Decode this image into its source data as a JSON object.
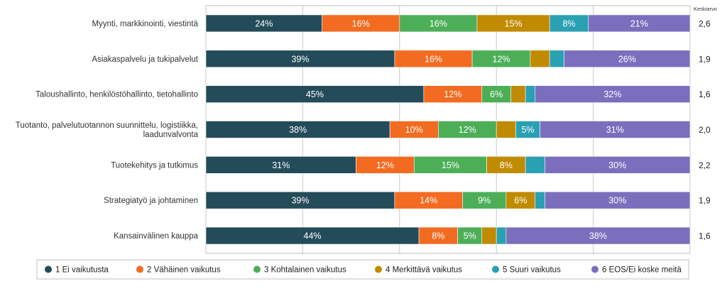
{
  "chart_data": {
    "type": "bar",
    "orientation": "horizontal",
    "stacked": true,
    "percent_stacked": true,
    "xlim": [
      0,
      100
    ],
    "grid": true,
    "legend_position": "bottom",
    "categories": [
      "Myynti, markkinointi, viestintä",
      "Asiakaspalvelu ja tukipalvelut",
      "Taloushallinto, henkilöstöhallinto, tietohallinto",
      "Tuotanto, palvelutuotannon suunnittelu, logistiikka, laadunvalvonta",
      "Tuotekehitys ja tutkimus",
      "Strategiatyö ja johtaminen",
      "Kansainvälinen kauppa"
    ],
    "category_lines": [
      [
        "Myynti, markkinointi, viestintä"
      ],
      [
        "Asiakaspalvelu ja tukipalvelut"
      ],
      [
        "Taloushallinto, henkilöstöhallinto, tietohallinto"
      ],
      [
        "Tuotanto, palvelutuotannon suunnittelu, logistiikka,",
        "laadunvalvonta"
      ],
      [
        "Tuotekehitys ja tutkimus"
      ],
      [
        "Strategiatyö ja johtaminen"
      ],
      [
        "Kansainvälinen kauppa"
      ]
    ],
    "series": [
      {
        "name": "1 Ei vaikutusta",
        "color": "#244b5a",
        "values": [
          24,
          39,
          45,
          38,
          31,
          39,
          44
        ]
      },
      {
        "name": "2 Vähäinen vaikutus",
        "color": "#f26b21",
        "values": [
          16,
          16,
          12,
          10,
          12,
          14,
          8
        ]
      },
      {
        "name": "3 Kohtalainen vaikutus",
        "color": "#4caf58",
        "values": [
          16,
          12,
          6,
          12,
          15,
          9,
          5
        ]
      },
      {
        "name": "4 Merkittävä vaikutus",
        "color": "#c08b00",
        "values": [
          15,
          4,
          3,
          4,
          8,
          6,
          3
        ]
      },
      {
        "name": "5 Suuri vaikutus",
        "color": "#2aa0b3",
        "values": [
          8,
          3,
          2,
          5,
          4,
          2,
          2
        ]
      },
      {
        "name": "6 EOS/Ei koske meitä",
        "color": "#7b6fbd",
        "values": [
          21,
          26,
          32,
          31,
          30,
          30,
          38
        ]
      }
    ],
    "labels": [
      [
        "24%",
        "16%",
        "16%",
        "15%",
        "8%",
        "21%"
      ],
      [
        "39%",
        "16%",
        "12%",
        "",
        "",
        "26%"
      ],
      [
        "45%",
        "12%",
        "6%",
        "",
        "",
        "32%"
      ],
      [
        "38%",
        "10%",
        "12%",
        "",
        "5%",
        "31%"
      ],
      [
        "31%",
        "12%",
        "15%",
        "8%",
        "",
        "30%"
      ],
      [
        "39%",
        "14%",
        "9%",
        "6%",
        "",
        "30%"
      ],
      [
        "44%",
        "8%",
        "5%",
        "",
        "",
        "38%"
      ]
    ],
    "average_header": "Keskiarvo",
    "averages": [
      "2,6",
      "1,9",
      "1,6",
      "2,0",
      "2,2",
      "1,9",
      "1,6"
    ]
  }
}
